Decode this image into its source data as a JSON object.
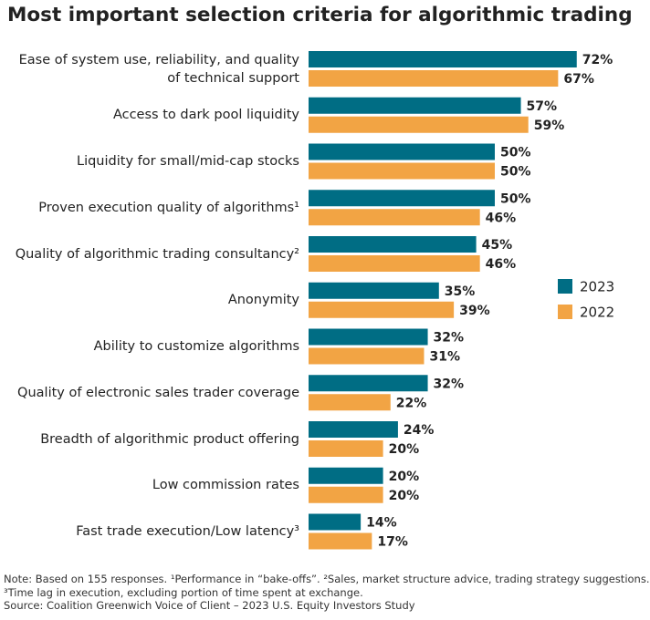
{
  "chart_data": {
    "type": "bar",
    "orientation": "horizontal",
    "title": "Most important selection criteria for algorithmic trading",
    "categories": [
      "Ease of system use, reliability, and quality of technical support",
      "Access to dark pool liquidity",
      "Liquidity for small/mid-cap stocks",
      "Proven execution quality of algorithms¹",
      "Quality of algorithmic trading consultancy²",
      "Anonymity",
      "Ability to customize algorithms",
      "Quality of electronic sales trader coverage",
      "Breadth of algorithmic product offering",
      "Low commission rates",
      "Fast trade execution/Low latency³"
    ],
    "series": [
      {
        "name": "2023",
        "color": "#006d84",
        "values": [
          72,
          57,
          50,
          50,
          45,
          35,
          32,
          32,
          24,
          20,
          14
        ],
        "value_labels": [
          "72%",
          "57%",
          "50%",
          "50%",
          "45%",
          "35%",
          "32%",
          "32%",
          "24%",
          "20%",
          "14%"
        ]
      },
      {
        "name": "2022",
        "color": "#f2a444",
        "values": [
          67,
          59,
          50,
          46,
          46,
          39,
          31,
          22,
          20,
          20,
          17
        ],
        "value_labels": [
          "67%",
          "59%",
          "50%",
          "46%",
          "46%",
          "39%",
          "31%",
          "22%",
          "20%",
          "20%",
          "17%"
        ]
      }
    ],
    "legend": "right",
    "notes": [
      "Note: Based on 155 responses. ¹Performance in “bake-offs”. ²Sales, market structure advice, trading strategy suggestions.",
      "³Time lag in execution, excluding portion of time spent at exchange.",
      "Source: Coalition Greenwich Voice of Client – 2023 U.S. Equity Investors Study"
    ]
  }
}
